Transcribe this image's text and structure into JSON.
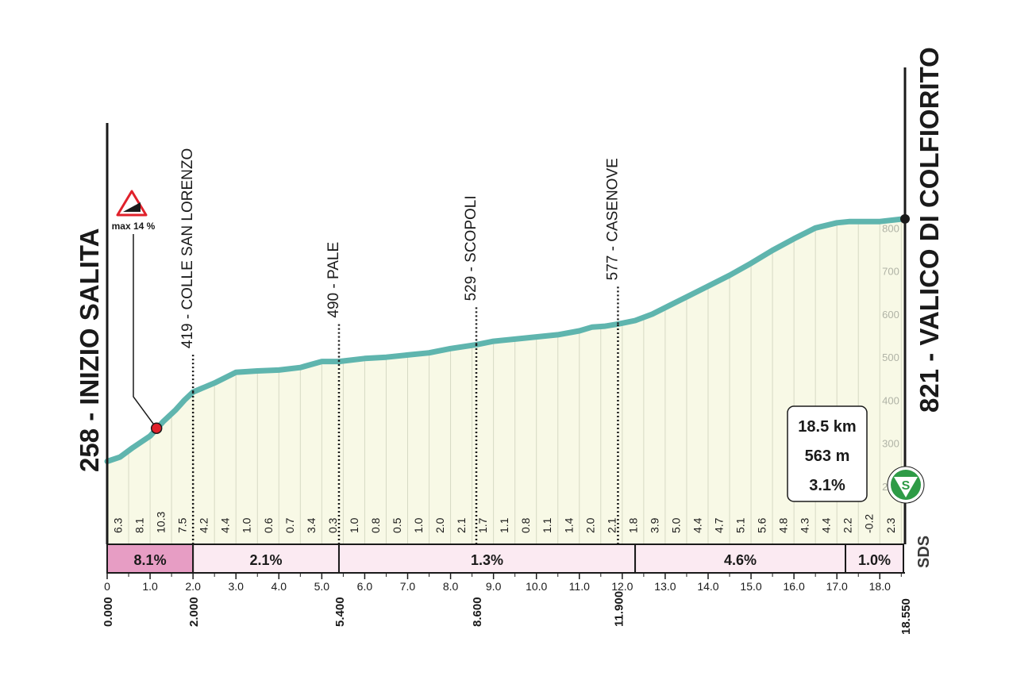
{
  "chart_data": {
    "type": "area",
    "title": "",
    "xlabel": "",
    "ylabel": "",
    "xlim": [
      0,
      18.55
    ],
    "ylim": [
      200,
      840
    ],
    "y_ticks": [
      200,
      300,
      400,
      500,
      600,
      700,
      800
    ],
    "x_ticks": [
      "0",
      "1.0",
      "2.0",
      "3.0",
      "4.0",
      "5.0",
      "6.0",
      "7.0",
      "8.0",
      "9.0",
      "10.0",
      "11.0",
      "12.0",
      "13.0",
      "14.0",
      "15.0",
      "16.0",
      "17.0",
      "18.0"
    ],
    "profile": {
      "x": [
        0,
        0.3,
        0.6,
        1.0,
        1.3,
        1.6,
        1.8,
        2.0,
        2.5,
        3.0,
        3.5,
        4.0,
        4.5,
        5.0,
        5.4,
        6.0,
        6.5,
        7.0,
        7.5,
        8.0,
        8.6,
        9.0,
        9.5,
        10.0,
        10.5,
        11.0,
        11.3,
        11.6,
        11.9,
        12.3,
        12.7,
        13.0,
        13.5,
        14.0,
        14.5,
        15.0,
        15.5,
        16.0,
        16.5,
        17.0,
        17.3,
        17.5,
        18.0,
        18.55
      ],
      "y": [
        258,
        268,
        290,
        317,
        350,
        378,
        400,
        419,
        440,
        465,
        468,
        470,
        476,
        490,
        490,
        497,
        500,
        505,
        510,
        520,
        529,
        537,
        542,
        547,
        552,
        561,
        570,
        572,
        577,
        585,
        600,
        615,
        640,
        665,
        690,
        718,
        748,
        775,
        800,
        812,
        815,
        815,
        815,
        821
      ]
    },
    "waypoints": [
      {
        "km": "0.000",
        "elev": "258",
        "name": "INIZIO SALITA",
        "label": "258 - INIZIO SALITA"
      },
      {
        "km": "2.000",
        "elev": "419",
        "name": "COLLE SAN LORENZO",
        "label": "419 - COLLE SAN LORENZO"
      },
      {
        "km": "5.400",
        "elev": "490",
        "name": "PALE",
        "label": "490 - PALE"
      },
      {
        "km": "8.600",
        "elev": "529",
        "name": "SCOPOLI",
        "label": "529 - SCOPOLI"
      },
      {
        "km": "11.900",
        "elev": "577",
        "name": "CASENOVE",
        "label": "577 - CASENOVE"
      },
      {
        "km": "18.550",
        "elev": "821",
        "name": "VALICO DI COLFIORITO",
        "label": "821 - VALICO DI COLFIORITO"
      }
    ],
    "km_gradients": [
      "6.3",
      "8.1",
      "10.3",
      "7.5",
      "4.2",
      "4.4",
      "1.0",
      "0.6",
      "0.7",
      "3.4",
      "0.3",
      "1.0",
      "0.8",
      "0.5",
      "1.0",
      "2.0",
      "2.1",
      "1.7",
      "1.1",
      "0.8",
      "1.1",
      "1.4",
      "2.0",
      "2.1",
      "1.8",
      "3.9",
      "5.0",
      "4.4",
      "4.7",
      "5.1",
      "5.6",
      "4.8",
      "4.3",
      "4.4",
      "2.2",
      "-0.2",
      "2.3"
    ],
    "sectors": [
      {
        "from": 0.0,
        "to": 2.0,
        "label": "8.1%",
        "color": "#e79dc4"
      },
      {
        "from": 2.0,
        "to": 5.4,
        "label": "2.1%",
        "color": "#fbeaf2"
      },
      {
        "from": 5.4,
        "to": 12.3,
        "label": "1.3%",
        "color": "#fbeaf2"
      },
      {
        "from": 12.3,
        "to": 17.2,
        "label": "4.6%",
        "color": "#fbeaf2"
      },
      {
        "from": 17.2,
        "to": 18.55,
        "label": "1.0%",
        "color": "#fbeaf2"
      }
    ],
    "max_gradient": {
      "km": 1.15,
      "elev": 335,
      "label": "max 14 %"
    },
    "summary": {
      "distance": "18.5 km",
      "gain": "563 m",
      "avg_gradient": "3.1%"
    },
    "badge_letter": "S",
    "brand": "SDS",
    "colors": {
      "profile_line": "#5fb5ae",
      "fill": "#f8f9e6",
      "sector_strong": "#e79dc4",
      "sector_light": "#fbeaf2",
      "badge": "#2e9b46",
      "marker": "#e0212b"
    }
  }
}
